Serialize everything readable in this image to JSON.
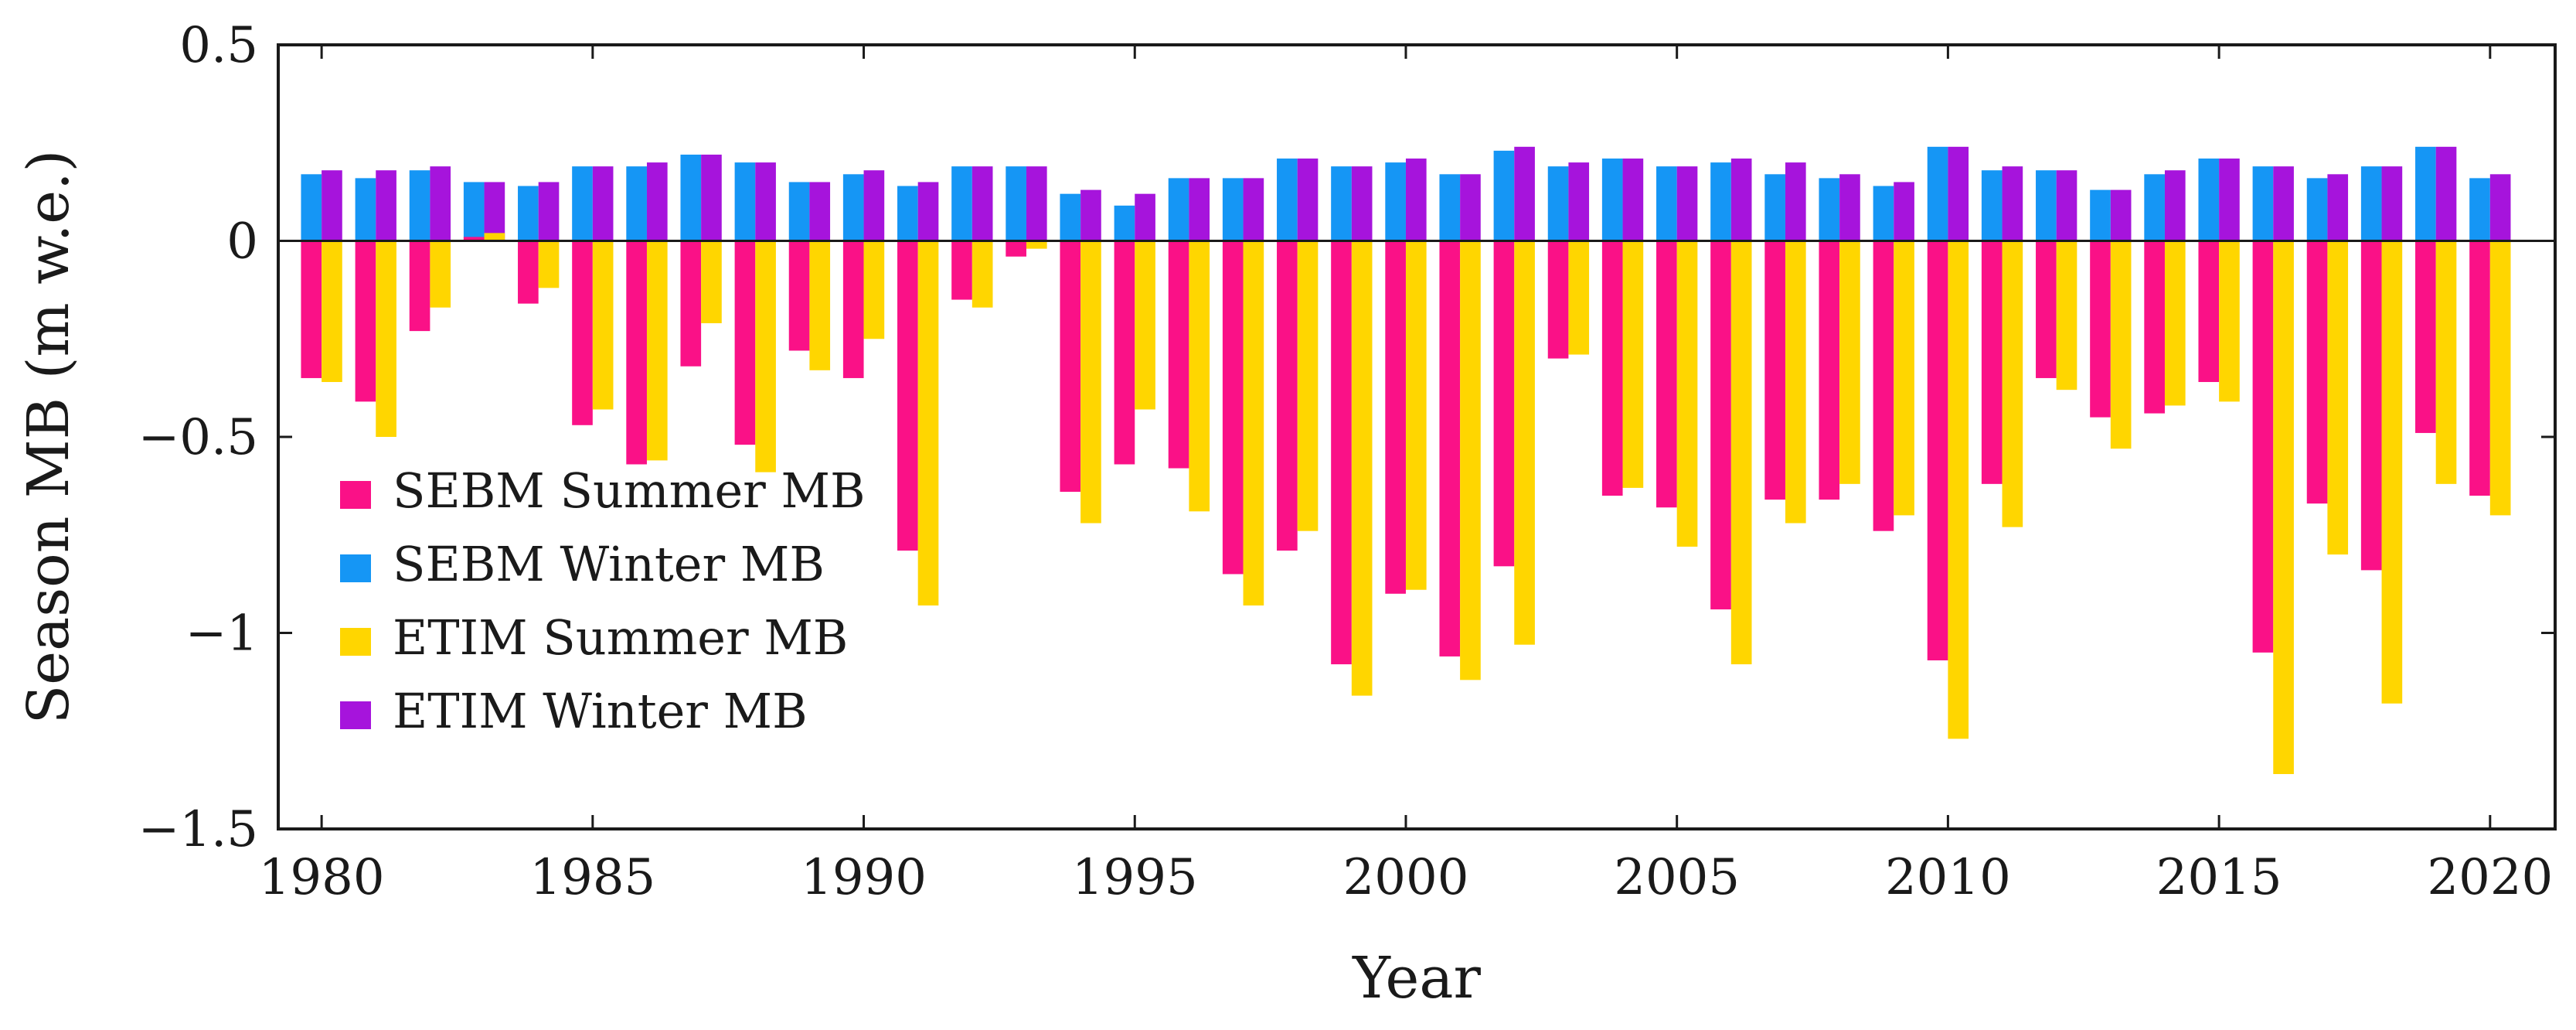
{
  "chart_data": {
    "type": "bar",
    "xlabel": "Year",
    "ylabel": "Season MB (m w.e.)",
    "ylim": [
      -1.5,
      0.5
    ],
    "yticks": [
      0.5,
      0,
      -0.5,
      -1,
      -1.5
    ],
    "ytick_labels": [
      "0.5",
      "0",
      "−0.5",
      "−1",
      "−1.5"
    ],
    "xlim": [
      1979.2,
      2021.2
    ],
    "xticks": [
      1980,
      1985,
      1990,
      1995,
      2000,
      2005,
      2010,
      2015,
      2020
    ],
    "xtick_labels": [
      "1980",
      "1985",
      "1990",
      "1995",
      "2000",
      "2005",
      "2010",
      "2015",
      "2020"
    ],
    "legend_position": "lower-left",
    "years": [
      1980,
      1981,
      1982,
      1983,
      1984,
      1985,
      1986,
      1987,
      1988,
      1989,
      1990,
      1991,
      1992,
      1993,
      1994,
      1995,
      1996,
      1997,
      1998,
      1999,
      2000,
      2001,
      2002,
      2003,
      2004,
      2005,
      2006,
      2007,
      2008,
      2009,
      2010,
      2011,
      2012,
      2013,
      2014,
      2015,
      2016,
      2017,
      2018,
      2019,
      2020
    ],
    "winter_pair": [
      {
        "name": "SEBM Winter MB",
        "color": "#1596F5",
        "values": [
          0.17,
          0.16,
          0.18,
          0.15,
          0.14,
          0.19,
          0.19,
          0.22,
          0.2,
          0.15,
          0.17,
          0.14,
          0.19,
          0.19,
          0.12,
          0.09,
          0.16,
          0.16,
          0.21,
          0.19,
          0.2,
          0.17,
          0.23,
          0.19,
          0.21,
          0.19,
          0.2,
          0.17,
          0.16,
          0.14,
          0.24,
          0.18,
          0.18,
          0.13,
          0.17,
          0.21,
          0.19,
          0.16,
          0.19,
          0.24,
          0.16
        ]
      },
      {
        "name": "ETIM Winter MB",
        "color": "#A614DC",
        "values": [
          0.18,
          0.18,
          0.19,
          0.15,
          0.15,
          0.19,
          0.2,
          0.22,
          0.2,
          0.15,
          0.18,
          0.15,
          0.19,
          0.19,
          0.13,
          0.12,
          0.16,
          0.16,
          0.21,
          0.19,
          0.21,
          0.17,
          0.24,
          0.2,
          0.21,
          0.19,
          0.21,
          0.2,
          0.17,
          0.15,
          0.24,
          0.19,
          0.18,
          0.13,
          0.18,
          0.21,
          0.19,
          0.17,
          0.19,
          0.24,
          0.17
        ]
      }
    ],
    "summer_pair": [
      {
        "name": "SEBM Summer MB",
        "color": "#FA1187",
        "values": [
          -0.35,
          -0.41,
          -0.23,
          0.01,
          -0.16,
          -0.47,
          -0.57,
          -0.32,
          -0.52,
          -0.28,
          -0.35,
          -0.79,
          -0.15,
          -0.04,
          -0.64,
          -0.57,
          -0.58,
          -0.85,
          -0.79,
          -1.08,
          -0.9,
          -1.06,
          -0.83,
          -0.3,
          -0.65,
          -0.68,
          -0.94,
          -0.66,
          -0.66,
          -0.74,
          -1.07,
          -0.62,
          -0.35,
          -0.45,
          -0.44,
          -0.36,
          -1.05,
          -0.67,
          -0.84,
          -0.49,
          -0.65
        ]
      },
      {
        "name": "ETIM Summer MB",
        "color": "#FFD600",
        "values": [
          -0.36,
          -0.5,
          -0.17,
          0.02,
          -0.12,
          -0.43,
          -0.56,
          -0.21,
          -0.59,
          -0.33,
          -0.25,
          -0.93,
          -0.17,
          -0.02,
          -0.72,
          -0.43,
          -0.69,
          -0.93,
          -0.74,
          -1.16,
          -0.89,
          -1.12,
          -1.03,
          -0.29,
          -0.63,
          -0.78,
          -1.08,
          -0.72,
          -0.62,
          -0.7,
          -1.27,
          -0.73,
          -0.38,
          -0.53,
          -0.42,
          -0.41,
          -1.36,
          -0.8,
          -1.18,
          -0.62,
          -0.7
        ]
      }
    ],
    "legend": [
      {
        "label": "SEBM Summer MB",
        "color": "#FA1187"
      },
      {
        "label": "SEBM Winter MB",
        "color": "#1596F5"
      },
      {
        "label": "ETIM Summer MB",
        "color": "#FFD600"
      },
      {
        "label": "ETIM Winter MB",
        "color": "#A614DC"
      }
    ]
  }
}
